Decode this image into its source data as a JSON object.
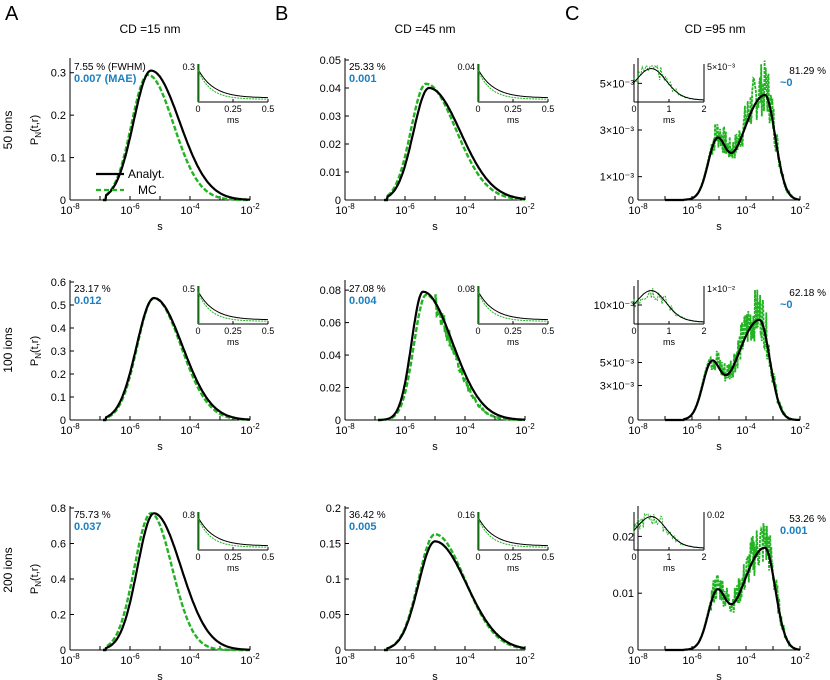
{
  "panel_letters": [
    "A",
    "B",
    "C"
  ],
  "column_titles": [
    "CD =15 nm",
    "CD =45 nm",
    "CD =95 nm"
  ],
  "row_labels": [
    "50 ions",
    "100 ions",
    "200 ions"
  ],
  "ylabel": "P_N(t,r)",
  "xlabel": "s",
  "inset_xlabel": "ms",
  "legend": {
    "analyt": "Analyt.",
    "mc": "MC"
  },
  "colors": {
    "analyt": "#000000",
    "mc": "#22b322",
    "mae": "#1a7fc0"
  },
  "chart_data": [
    {
      "type": "line",
      "row": 0,
      "col": 0,
      "scale": "log-x",
      "xlim": [
        1e-08,
        0.01
      ],
      "ylim": [
        0,
        0.33
      ],
      "yticks": [
        0,
        0.1,
        0.2,
        0.3
      ],
      "ytick_labels": [
        "0",
        "0.1",
        "0.2",
        "0.3"
      ],
      "analyt": {
        "peak_log": -5.3,
        "peak": 0.305,
        "start_log": -6.8,
        "sl": 0.58,
        "sr": 0.95
      },
      "mc": {
        "peak_log": -5.4,
        "peak": 0.295,
        "start_log": -6.8,
        "sl": 0.55,
        "sr": 0.85
      },
      "fwhm": "7.55 % (FWHM)",
      "mae": "0.007 (MAE)",
      "inset": {
        "ytick": "0.3",
        "xticks": [
          "0",
          "0.25",
          "0.5"
        ]
      }
    },
    {
      "type": "line",
      "row": 0,
      "col": 1,
      "scale": "log-x",
      "xlim": [
        1e-08,
        0.01
      ],
      "ylim": [
        0,
        0.05
      ],
      "yticks": [
        0,
        0.01,
        0.02,
        0.03,
        0.04,
        0.05
      ],
      "ytick_labels": [
        "0",
        "0.01",
        "0.02",
        "0.03",
        "0.04",
        "0.05"
      ],
      "analyt": {
        "peak_log": -5.2,
        "peak": 0.04,
        "start_log": -6.6,
        "sl": 0.52,
        "sr": 1.05
      },
      "mc": {
        "peak_log": -5.3,
        "peak": 0.0415,
        "start_log": -6.6,
        "sl": 0.5,
        "sr": 1.0
      },
      "fwhm": "25.33 %",
      "mae": "0.001",
      "inset": {
        "ytick": "0.04",
        "xticks": [
          "0",
          "0.25",
          "0.5"
        ]
      }
    },
    {
      "type": "line",
      "row": 0,
      "col": 2,
      "scale": "log-x",
      "xlim": [
        1e-08,
        0.01
      ],
      "ylim": [
        0,
        0.006
      ],
      "yticks": [
        0.0,
        0.001,
        0.003,
        0.005
      ],
      "ytick_labels": [
        "0",
        "1×10⁻³",
        "3×10⁻³",
        "5×10⁻³"
      ],
      "bimodal": true,
      "analyt": {
        "peak_log": -3.3,
        "peak": 0.0045
      },
      "mc": {
        "peak_log": -3.3,
        "peak": 0.0048
      },
      "fwhm": "81.29 %",
      "mae": "~0",
      "inset": {
        "ytick": "5×10⁻³",
        "xticks": [
          "0",
          "1",
          "2"
        ]
      }
    },
    {
      "type": "line",
      "row": 1,
      "col": 0,
      "scale": "log-x",
      "xlim": [
        1e-08,
        0.01
      ],
      "ylim": [
        0,
        0.6
      ],
      "yticks": [
        0,
        0.1,
        0.2,
        0.3,
        0.4,
        0.5,
        0.6
      ],
      "ytick_labels": [
        "0",
        "0.1",
        "0.2",
        "0.3",
        "0.4",
        "0.5",
        "0.6"
      ],
      "analyt": {
        "peak_log": -5.2,
        "peak": 0.53,
        "start_log": -6.8,
        "sl": 0.58,
        "sr": 0.95
      },
      "mc": {
        "peak_log": -5.2,
        "peak": 0.53,
        "start_log": -6.8,
        "sl": 0.56,
        "sr": 0.9
      },
      "fwhm": "23.17 %",
      "mae": "0.012",
      "inset": {
        "ytick": "0.5",
        "xticks": [
          "0",
          "0.25",
          "0.5"
        ]
      }
    },
    {
      "type": "line",
      "row": 1,
      "col": 1,
      "scale": "log-x",
      "xlim": [
        1e-08,
        0.01
      ],
      "ylim": [
        0,
        0.085
      ],
      "yticks": [
        0,
        0.02,
        0.04,
        0.06,
        0.08
      ],
      "ytick_labels": [
        "0",
        "0.02",
        "0.04",
        "0.06",
        "0.08"
      ],
      "analyt": {
        "peak_log": -5.4,
        "peak": 0.079,
        "start_log": -6.8,
        "sl": 0.38,
        "sr": 0.98
      },
      "mc": {
        "peak_log": -5.3,
        "peak": 0.077,
        "start_log": -6.8,
        "sl": 0.4,
        "sr": 0.85
      },
      "fwhm": "27.08 %",
      "mae": "0.004",
      "inset": {
        "ytick": "0.08",
        "xticks": [
          "0",
          "0.25",
          "0.5"
        ]
      }
    },
    {
      "type": "line",
      "row": 1,
      "col": 2,
      "scale": "log-x",
      "xlim": [
        1e-08,
        0.01
      ],
      "ylim": [
        0,
        0.012
      ],
      "yticks": [
        0,
        0.003,
        0.005,
        0.01
      ],
      "ytick_labels": [
        "0",
        "3×10⁻³",
        "5×10⁻³",
        "10×10⁻³"
      ],
      "bimodal": true,
      "analyt": {
        "peak_log": -3.5,
        "peak": 0.0087
      },
      "mc": {
        "peak_log": -3.5,
        "peak": 0.0093
      },
      "fwhm": "62.18 %",
      "mae": "~0",
      "inset": {
        "ytick": "1×10⁻²",
        "xticks": [
          "0",
          "1",
          "2"
        ]
      }
    },
    {
      "type": "line",
      "row": 2,
      "col": 0,
      "scale": "log-x",
      "xlim": [
        1e-08,
        0.01
      ],
      "ylim": [
        0,
        0.8
      ],
      "yticks": [
        0,
        0.2,
        0.4,
        0.6,
        0.8
      ],
      "ytick_labels": [
        "0",
        "0.2",
        "0.4",
        "0.6",
        "0.8"
      ],
      "analyt": {
        "peak_log": -5.2,
        "peak": 0.77,
        "start_log": -6.8,
        "sl": 0.55,
        "sr": 0.9
      },
      "mc": {
        "peak_log": -5.3,
        "peak": 0.77,
        "start_log": -6.8,
        "sl": 0.55,
        "sr": 0.7
      },
      "fwhm": "75.73 %",
      "mae": "0.037",
      "inset": {
        "ytick": "0.8",
        "xticks": [
          "0",
          "0.25",
          "0.5"
        ]
      }
    },
    {
      "type": "line",
      "row": 2,
      "col": 1,
      "scale": "log-x",
      "xlim": [
        1e-08,
        0.01
      ],
      "ylim": [
        0,
        0.2
      ],
      "yticks": [
        0,
        0.05,
        0.1,
        0.15,
        0.2
      ],
      "ytick_labels": [
        "0",
        "0.05",
        "0.1",
        "0.15",
        "0.2"
      ],
      "analyt": {
        "peak_log": -5.0,
        "peak": 0.153,
        "start_log": -6.6,
        "sl": 0.55,
        "sr": 1.05
      },
      "mc": {
        "peak_log": -5.0,
        "peak": 0.163,
        "start_log": -6.6,
        "sl": 0.55,
        "sr": 1.0
      },
      "fwhm": "36.42 %",
      "mae": "0.005",
      "inset": {
        "ytick": "0.16",
        "xticks": [
          "0",
          "0.25",
          "0.5"
        ]
      }
    },
    {
      "type": "line",
      "row": 2,
      "col": 2,
      "scale": "log-x",
      "xlim": [
        1e-08,
        0.01
      ],
      "ylim": [
        0,
        0.025
      ],
      "yticks": [
        0,
        0.01,
        0.02
      ],
      "ytick_labels": [
        "0",
        "0.01",
        "0.02"
      ],
      "bimodal": true,
      "analyt": {
        "peak_log": -3.3,
        "peak": 0.018
      },
      "mc": {
        "peak_log": -3.3,
        "peak": 0.019
      },
      "fwhm": "53.26 %",
      "mae": "0.001",
      "inset": {
        "ytick": "0.02",
        "xticks": [
          "0",
          "1",
          "2"
        ]
      }
    }
  ]
}
